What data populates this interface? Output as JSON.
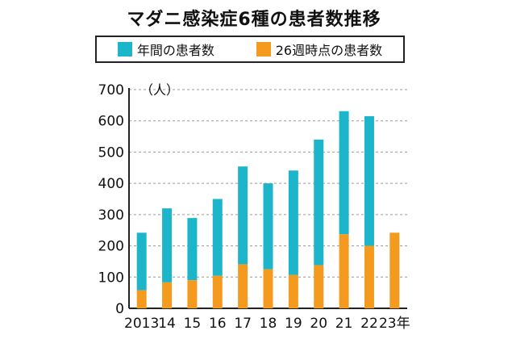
{
  "title": "マダニ感染症6種の患者数推移",
  "colors": {
    "annual": "#1cb5c9",
    "week26": "#f39a1f",
    "grid": "#9a9a9a",
    "axis": "#222222"
  },
  "chart_data": {
    "type": "bar",
    "stacked": true,
    "title": "マダニ感染症6種の患者数推移",
    "ylabel": "（人）",
    "ylim": [
      0,
      700
    ],
    "yticks": [
      "0",
      "100",
      "200",
      "300",
      "400",
      "500",
      "600",
      "700"
    ],
    "categories": [
      "2013",
      "14",
      "15",
      "16",
      "17",
      "18",
      "19",
      "20",
      "21",
      "22",
      "23年"
    ],
    "series": [
      {
        "name": "26週時点の患者数",
        "color": "#f39a1f",
        "values": [
          58,
          83,
          90,
          104,
          141,
          125,
          107,
          138,
          237,
          200,
          242
        ]
      },
      {
        "name": "年間の患者数",
        "color": "#1cb5c9",
        "totals": [
          242,
          320,
          289,
          350,
          454,
          400,
          441,
          540,
          631,
          615,
          null
        ]
      }
    ],
    "legend_position": "top",
    "grid": "dashed horizontal"
  }
}
